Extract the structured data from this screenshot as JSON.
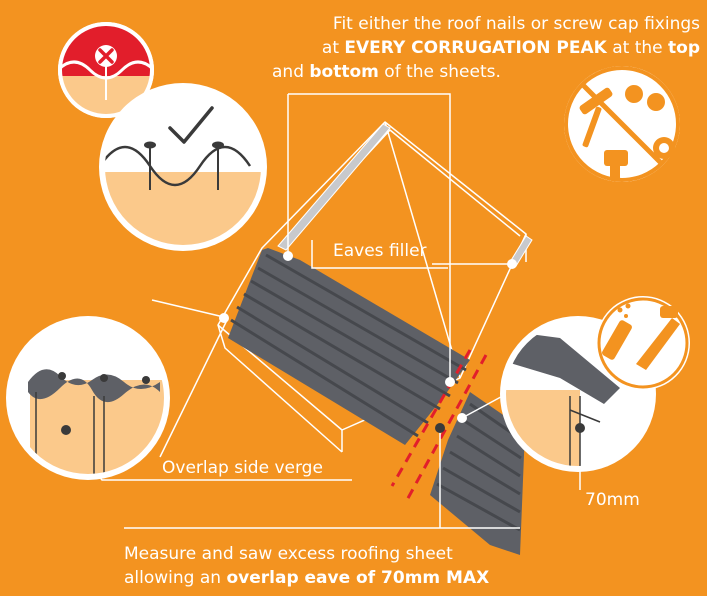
{
  "colors": {
    "background": "#F39320",
    "sheet_dark": "#5E6066",
    "sheet_rib": "#4A4C51",
    "skin": "#FBC98B",
    "red": "#E21E2B",
    "white": "#FFFFFF"
  },
  "instructions": {
    "top_line1": "Fit either the roof nails or screw cap fixings",
    "top_line2_pre": "at",
    "top_line2_bold": "EVERY CORRUGATION PEAK",
    "top_line2_mid": "at the",
    "top_line2_bold2": "top",
    "top_line3_pre": "and",
    "top_line3_bold": "bottom",
    "top_line3_post": "of the sheets.",
    "bottom_line1": "Measure and saw excess roofing sheet",
    "bottom_line2_pre": "allowing an",
    "bottom_line2_bold": "overlap eave of 70mm MAX"
  },
  "labels": {
    "eaves_filler": "Eaves filler",
    "overlap_side_verge": "Overlap side verge",
    "overlap_measure": "70mm"
  },
  "icons": {
    "wrong": "cross-icon",
    "correct": "check-icon",
    "no_tools": "prohibited-tools-icon",
    "saw_tools": "saw-and-marker-icon"
  }
}
